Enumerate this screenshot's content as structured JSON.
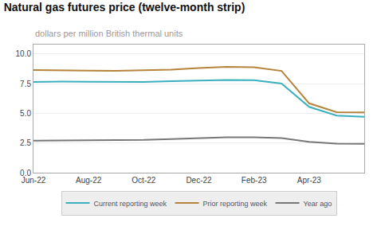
{
  "chart_data": {
    "type": "line",
    "title": "Natural gas futures price (twelve-month strip)",
    "subtitle": "dollars per million British thermal units",
    "categories": [
      "Jun-22",
      null,
      "Aug-22",
      null,
      "Oct-22",
      null,
      "Dec-22",
      null,
      "Feb-23",
      null,
      "Apr-23",
      null,
      null
    ],
    "series": [
      {
        "name": "Current reporting week",
        "color": "#3aafbe",
        "values": [
          7.65,
          7.68,
          7.66,
          7.65,
          7.65,
          7.72,
          7.78,
          7.82,
          7.8,
          7.52,
          5.55,
          4.82,
          4.72
        ]
      },
      {
        "name": "Prior reporting week",
        "color": "#b5833a",
        "values": [
          8.65,
          8.65,
          8.6,
          8.58,
          8.62,
          8.68,
          8.82,
          8.92,
          8.88,
          8.58,
          5.85,
          5.1,
          5.08
        ]
      },
      {
        "name": "Year ago",
        "color": "#777777",
        "values": [
          2.7,
          2.72,
          2.73,
          2.72,
          2.76,
          2.84,
          2.94,
          2.99,
          2.99,
          2.92,
          2.6,
          2.45,
          2.44
        ]
      }
    ],
    "ylim": [
      0.0,
      10.8
    ],
    "yticks": [
      {
        "value": 0,
        "label": "0.0"
      },
      2.5,
      {
        "value": 5,
        "label": "5.0"
      },
      7.5,
      {
        "value": 10,
        "label": "10.0"
      }
    ],
    "grid": true,
    "legend": "bottom"
  }
}
